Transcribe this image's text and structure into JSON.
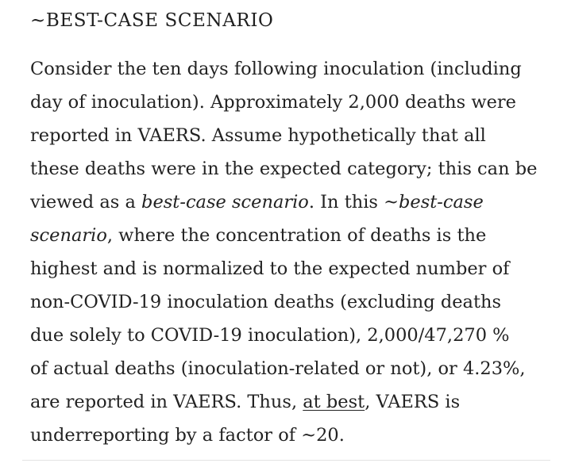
{
  "section": {
    "heading": "~BEST-CASE SCENARIO"
  },
  "paragraph": {
    "line1": "Consider the ten days following inoculation (including",
    "line2": "day of inoculation). Approximately 2,000 deaths were",
    "line3": "reported in VAERS. Assume hypothetically that all",
    "line4": "these deaths were in the expected category; this can be",
    "line5_a": "viewed as a ",
    "line5_em1": "best-case scenario",
    "line5_b": ". In this ",
    "line5_em2": "~best-case",
    "line6_em": "scenario",
    "line6_b": ", where the concentration of deaths is the",
    "line7": "highest and is normalized to the expected number of",
    "line8": "non-COVID-19 inoculation deaths (excluding deaths",
    "line9": "due solely to COVID-19 inoculation), 2,000/47,270 %",
    "line10": "of actual deaths (inoculation-related or not), or 4.23%,",
    "line11_a": "are reported in VAERS. Thus, ",
    "line11_u": "at best",
    "line11_b": ", VAERS is",
    "line12": "underreporting by a factor of ~20."
  }
}
